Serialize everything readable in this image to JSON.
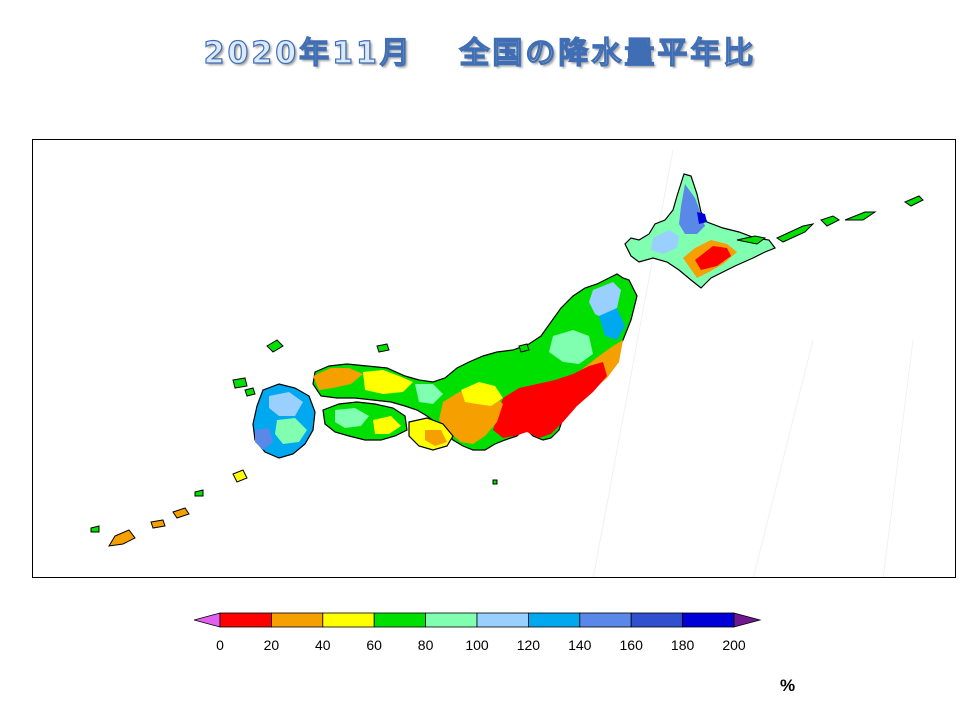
{
  "title": "2020年11月　 全国の降水量平年比",
  "legend": {
    "ticks": [
      "0",
      "20",
      "40",
      "60",
      "80",
      "100",
      "120",
      "140",
      "160",
      "180",
      "200"
    ],
    "colors": [
      "#ff0000",
      "#f5a000",
      "#ffff00",
      "#00e000",
      "#80ffb0",
      "#9ad0ff",
      "#00a8f0",
      "#5a88e8",
      "#3050d0",
      "#0000d8"
    ],
    "under_color": "#e060f0",
    "over_color": "#701890",
    "unit": "%"
  },
  "map": {
    "region": "Japan",
    "colors": {
      "very_low": "#ff0000",
      "low": "#f5a000",
      "below": "#ffff00",
      "near_low": "#00e000",
      "near": "#80ffb0",
      "above": "#9ad0ff",
      "high": "#00a8f0",
      "higher": "#5a88e8",
      "very_high": "#0000d8"
    }
  }
}
